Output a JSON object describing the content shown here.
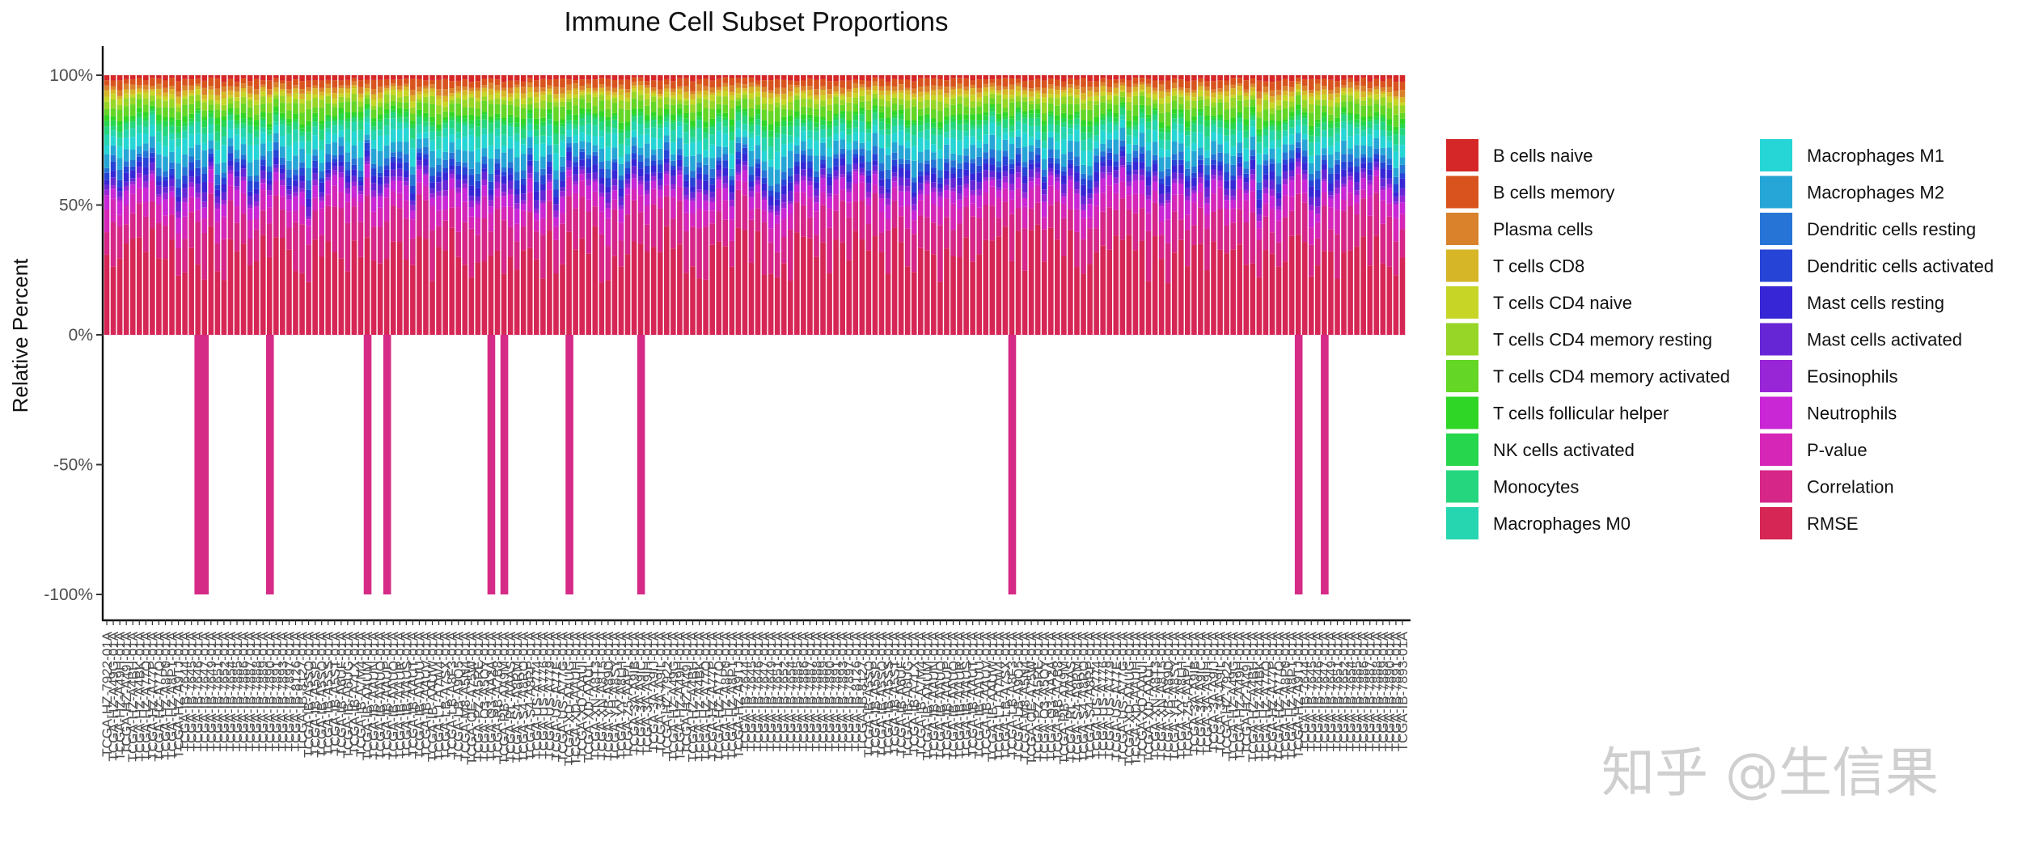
{
  "chart_data": {
    "type": "bar",
    "stacked": true,
    "title": "Immune Cell Subset Proportions",
    "xlabel": "",
    "ylabel": "Relative Percent",
    "ylim": [
      -1.0,
      1.0
    ],
    "yticks": [
      {
        "value": 1.0,
        "label": "100%"
      },
      {
        "value": 0.5,
        "label": "50%"
      },
      {
        "value": 0.0,
        "label": "0%"
      },
      {
        "value": -0.5,
        "label": "-50%"
      },
      {
        "value": -1.0,
        "label": "-100%"
      }
    ],
    "n_samples": 200,
    "negative_bars": [
      {
        "index": 14,
        "value": -1.0
      },
      {
        "index": 15,
        "value": -1.0
      },
      {
        "index": 25,
        "value": -1.0
      },
      {
        "index": 40,
        "value": -1.0
      },
      {
        "index": 43,
        "value": -1.0
      },
      {
        "index": 59,
        "value": -1.0
      },
      {
        "index": 61,
        "value": -1.0
      },
      {
        "index": 71,
        "value": -1.0
      },
      {
        "index": 82,
        "value": -1.0
      },
      {
        "index": 139,
        "value": -1.0
      },
      {
        "index": 183,
        "value": -1.0
      },
      {
        "index": 187,
        "value": -1.0
      }
    ],
    "grid": false,
    "legend_position": "right",
    "series": [
      {
        "name": "B cells naive",
        "color": "#d62728"
      },
      {
        "name": "B cells memory",
        "color": "#d9531e"
      },
      {
        "name": "Plasma cells",
        "color": "#d9822b"
      },
      {
        "name": "T cells CD8",
        "color": "#d6b626"
      },
      {
        "name": "T cells CD4 naive",
        "color": "#c7d626"
      },
      {
        "name": "T cells CD4 memory resting",
        "color": "#97d626"
      },
      {
        "name": "T cells CD4 memory activated",
        "color": "#64d626"
      },
      {
        "name": "T cells follicular helper",
        "color": "#2fd626"
      },
      {
        "name": "NK cells activated",
        "color": "#26d64c"
      },
      {
        "name": "Monocytes",
        "color": "#26d67f"
      },
      {
        "name": "Macrophages M0",
        "color": "#26d6b0"
      },
      {
        "name": "Macrophages M1",
        "color": "#26d6d6"
      },
      {
        "name": "Macrophages M2",
        "color": "#26a6d6"
      },
      {
        "name": "Dendritic cells resting",
        "color": "#2675d6"
      },
      {
        "name": "Dendritic cells activated",
        "color": "#2644d6"
      },
      {
        "name": "Mast cells resting",
        "color": "#3626d6"
      },
      {
        "name": "Mast cells activated",
        "color": "#6726d6"
      },
      {
        "name": "Eosinophils",
        "color": "#9826d6"
      },
      {
        "name": "Neutrophils",
        "color": "#c926d6"
      },
      {
        "name": "P-value",
        "color": "#d626b8"
      },
      {
        "name": "Correlation",
        "color": "#d62687"
      },
      {
        "name": "RMSE",
        "color": "#d62656"
      }
    ],
    "x_tick_labels_sample": [
      "TCGA-HZ-7922-01A",
      "TCGA-HZ-A49G-01A",
      "TCGA-HZ-A49H-01A",
      "TCGA-HZ-A49I-01A",
      "TCGA-HZ-A4BH-01A",
      "TCGA-HZ-A4BK-01A",
      "TCGA-HZ-A77O-01A",
      "TCGA-HZ-A77P-01A",
      "TCGA-HZ-A77Q-01A",
      "TCGA-HZ-A8P0-01A",
      "TCGA-HZ-A8P1-01A",
      "TCGA-HZ-A9TJ-01A",
      "TCGA-IB-7644-01A",
      "TCGA-IB-7645-01A",
      "TCGA-IB-7646-01A",
      "TCGA-IB-7647-01A",
      "TCGA-IB-7649-01A",
      "TCGA-IB-7651-01A",
      "TCGA-IB-7652-01A",
      "TCGA-IB-7654-01A",
      "TCGA-IB-7885-01A",
      "TCGA-IB-7886-01A",
      "TCGA-IB-7887-01A",
      "TCGA-IB-7888-01A",
      "TCGA-IB-7889-01A",
      "TCGA-IB-7890-01A",
      "TCGA-IB-7891-01A",
      "TCGA-IB-7893-01A",
      "TCGA-IB-7897-01A",
      "TCGA-IB-8126-01A",
      "TCGA-IB-8127-01A",
      "TCGA-IB-A5SO-01A",
      "TCGA-IB-A5SP-01A",
      "TCGA-IB-A5SQ-01A",
      "TCGA-IB-A5SS-01A",
      "TCGA-IB-A5ST-01A",
      "TCGA-IB-A6UF-01A",
      "TCGA-IB-A6UG-01A",
      "TCGA-IB-A7LX-01A",
      "TCGA-IB-A7M4-01A",
      "TCGA-IB-AAUM-01A",
      "TCGA-IB-AAUN-01A",
      "TCGA-IB-AAUO-01A",
      "TCGA-IB-AAUP-01A",
      "TCGA-IB-AAUQ-01A",
      "TCGA-IB-AAUR-01A",
      "TCGA-IB-AAUS-01A",
      "TCGA-IB-AAUT-01A",
      "TCGA-IB-AAUU-01A",
      "TCGA-IB-AAUV-01A",
      "TCGA-IB-AAUW-01A",
      "TCGA-L1-A7W4-01A",
      "TCGA-LB-A7SX-01A",
      "TCGA-LB-A8F3-01A",
      "TCGA-LB-A9Q5-01A",
      "TCGA-M8-A5N4-01A",
      "TCGA-OE-A75W-01A",
      "TCGA-PZ-A5RE-01A",
      "TCGA-Q3-A5QY-01A",
      "TCGA-Q3-AA2A-01A",
      "TCGA-RB-A7B8-01A",
      "TCGA-RB-AA9M-01A",
      "TCGA-RL-AAAS-01A",
      "TCGA-S4-A8RM-01A",
      "TCGA-S4-A8RO-01A",
      "TCGA-S4-A8RP-01A",
      "TCGA-US-A774-01A",
      "TCGA-US-A776-01A",
      "TCGA-US-A779-01A",
      "TCGA-US-A77E-01A",
      "TCGA-US-A77G-01A",
      "TCGA-XD-AAUG-01A",
      "TCGA-XD-AAUH-01A",
      "TCGA-XD-AAUI-01A",
      "TCGA-XD-AAUL-01A",
      "TCGA-XN-A8T3-01A",
      "TCGA-XN-A8T5-01A",
      "TCGA-YB-A89D-01A",
      "TCGA-YH-A8SY-01A",
      "TCGA-YY-A8LH-01A",
      "TCGA-Z5-AAPL-01A",
      "TCGA-3A-A9IB-01A",
      "TCGA-3A-A9IC-01A",
      "TCGA-3A-A9IH-01A",
      "TCGA-3A-A9IJ-01A",
      "TCGA-3A-A9IL-01A"
    ]
  },
  "watermark": "知乎 @生信果"
}
